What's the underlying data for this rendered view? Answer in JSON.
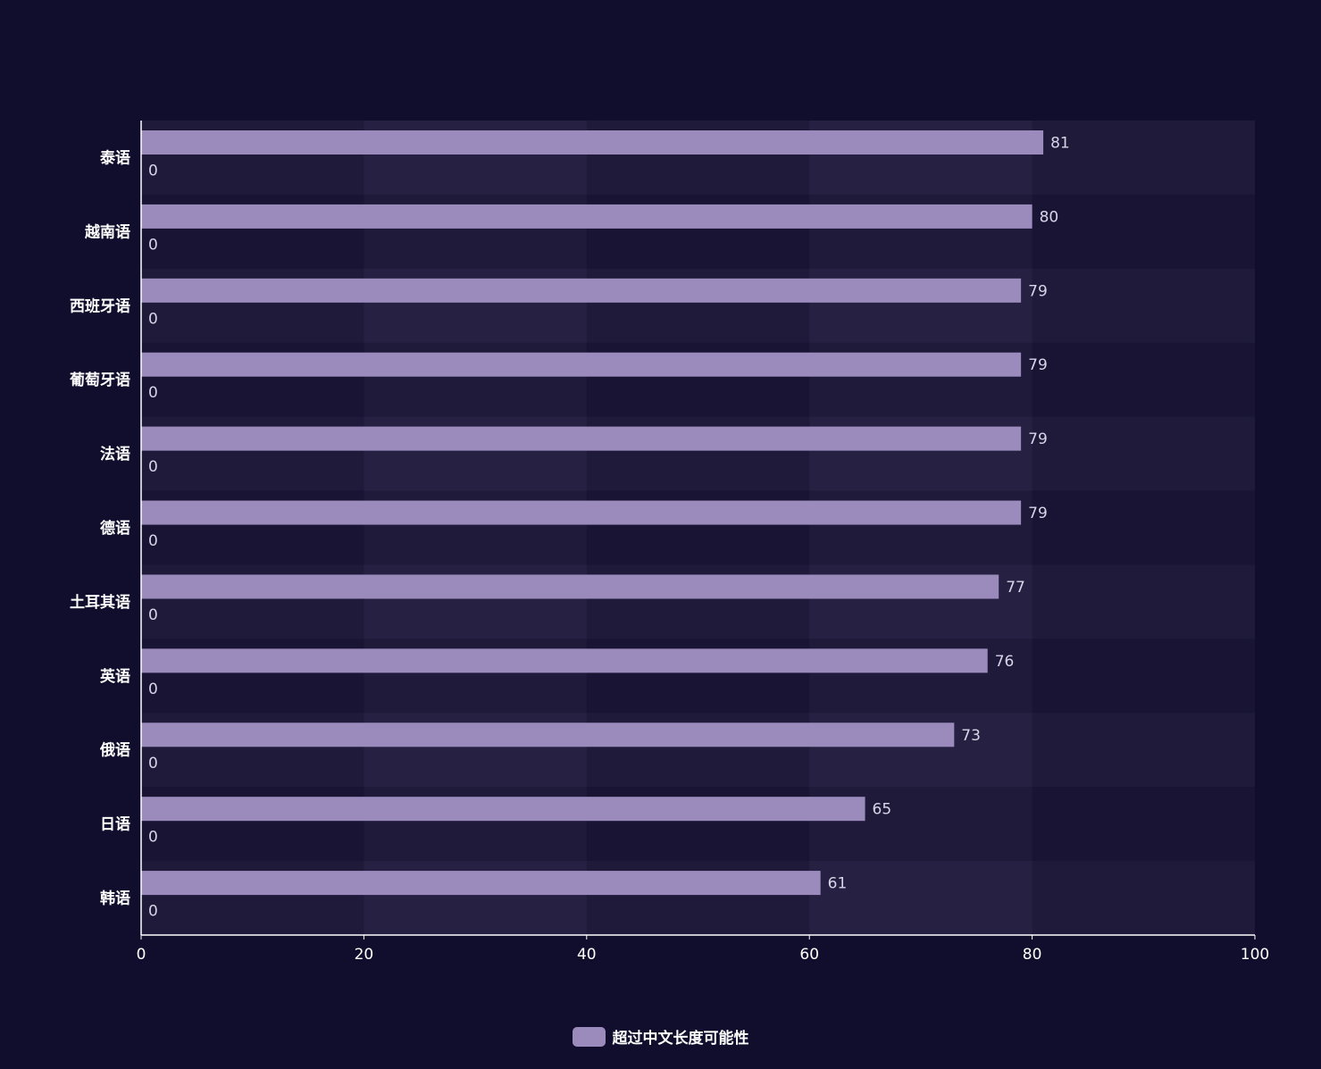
{
  "chart_data": {
    "type": "bar",
    "orientation": "horizontal",
    "categories": [
      "泰语",
      "越南语",
      "西班牙语",
      "葡萄牙语",
      "法语",
      "德语",
      "土耳其语",
      "英语",
      "俄语",
      "日语",
      "韩语"
    ],
    "series": [
      {
        "name": "超过中文长度可能性",
        "values": [
          81,
          80,
          79,
          79,
          79,
          79,
          77,
          76,
          73,
          65,
          61
        ]
      },
      {
        "values": [
          0,
          0,
          0,
          0,
          0,
          0,
          0,
          0,
          0,
          0,
          0
        ]
      }
    ],
    "xlim": [
      0,
      100
    ],
    "xticks": [
      0,
      20,
      40,
      60,
      80,
      100
    ],
    "legend_position": "bottom-center",
    "colors": {
      "background": "#110d2c",
      "bar": "#9b8bbd",
      "axis": "#ffffff"
    }
  }
}
